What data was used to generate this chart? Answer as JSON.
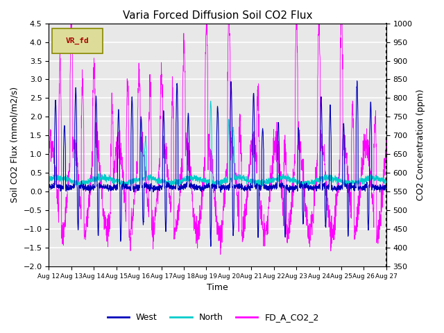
{
  "title": "Varia Forced Diffusion Soil CO2 Flux",
  "xlabel": "Time",
  "ylabel_left": "Soil CO2 Flux (mmol/m2/s)",
  "ylabel_right": "CO2 Concentration (ppm)",
  "ylim_left": [
    -2.0,
    4.5
  ],
  "ylim_right": [
    350,
    1000
  ],
  "x_tick_labels": [
    "Aug 12",
    "Aug 13",
    "Aug 14",
    "Aug 15",
    "Aug 16",
    "Aug 17",
    "Aug 18",
    "Aug 19",
    "Aug 20",
    "Aug 21",
    "Aug 22",
    "Aug 23",
    "Aug 24",
    "Aug 25",
    "Aug 26",
    "Aug 27"
  ],
  "color_west": "#0000bb",
  "color_north": "#00cccc",
  "color_co2": "#ff00ff",
  "legend_label_west": "West",
  "legend_label_north": "North",
  "legend_label_co2": "FD_A_CO2_2",
  "vr_fd_box_facecolor": "#dddd99",
  "vr_fd_box_edgecolor": "#888800",
  "vr_fd_text_color": "#aa0000",
  "background_color": "#e8e8e8",
  "grid_color": "#ffffff",
  "seed": 42,
  "figwidth": 6.4,
  "figheight": 4.8,
  "dpi": 100
}
